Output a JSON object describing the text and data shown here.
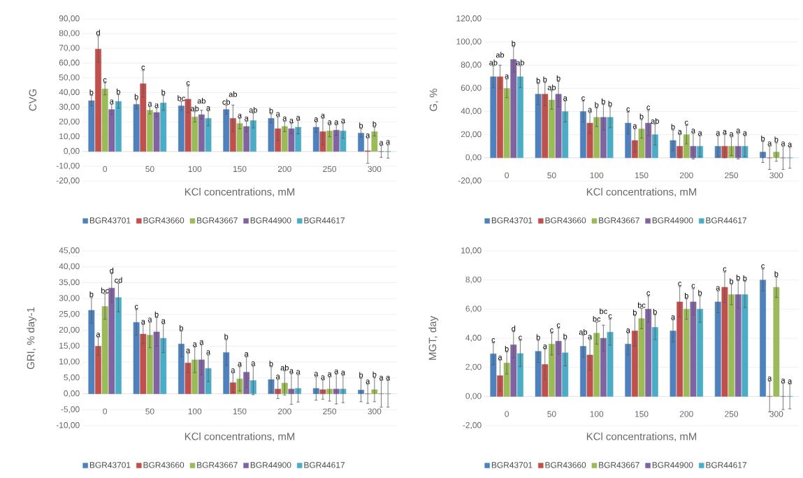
{
  "chart_data": [
    {
      "type": "bar",
      "xlabel": "KCl concentrations, mM",
      "ylabel": "CVG",
      "grid": "y",
      "legend": "bottom",
      "categories": [
        "0",
        "50",
        "100",
        "150",
        "200",
        "250",
        "300"
      ],
      "ylim": [
        -20,
        90
      ],
      "yticks": [
        {
          "value": -20,
          "label": "-20,00"
        },
        {
          "value": -10,
          "label": "-10,00"
        },
        {
          "value": 0,
          "label": "0,00"
        },
        {
          "value": 10,
          "label": "10,00"
        },
        {
          "value": 20,
          "label": "20,00"
        },
        {
          "value": 30,
          "label": "30,00"
        },
        {
          "value": 40,
          "label": "40,00"
        },
        {
          "value": 50,
          "label": "50,00"
        },
        {
          "value": 60,
          "label": "60,00"
        },
        {
          "value": 70,
          "label": "70,00"
        },
        {
          "value": 80,
          "label": "80,00"
        },
        {
          "value": 90,
          "label": "90,00"
        }
      ],
      "series": [
        {
          "name": "BGR43701",
          "color": "#4f81bd",
          "values": [
            34.5,
            32,
            31,
            28.5,
            22.5,
            16.5,
            12.5
          ],
          "errors": [
            3.5,
            3,
            3,
            3,
            3,
            3.5,
            3
          ],
          "value_labels": [
            "b",
            "b",
            "bc",
            "cb",
            "b",
            "a",
            "b"
          ]
        },
        {
          "name": "BGR43660",
          "color": "#c0504d",
          "values": [
            69.5,
            46,
            35.5,
            22.5,
            15.5,
            13.5,
            0.5
          ],
          "errors": [
            9,
            9,
            9,
            9,
            8,
            9,
            8.5
          ],
          "value_labels": [
            "d",
            "c",
            "c",
            "ab",
            "a",
            "a",
            "a"
          ]
        },
        {
          "name": "BGR43667",
          "color": "#9bbb59",
          "values": [
            42.5,
            28,
            23.5,
            19,
            17,
            14,
            13.5
          ],
          "errors": [
            4,
            2.5,
            3.5,
            3.5,
            3.5,
            4,
            3
          ],
          "value_labels": [
            "c",
            "a",
            "ab",
            "a",
            "a",
            "a",
            "b"
          ]
        },
        {
          "name": "BGR44900",
          "color": "#8064a2",
          "values": [
            28.5,
            26.5,
            25,
            17,
            15.5,
            14.5,
            0
          ],
          "errors": [
            3.5,
            3,
            3,
            3.5,
            3.5,
            3.5,
            4
          ],
          "value_labels": [
            "a",
            "a",
            "ab",
            "a",
            "a",
            "a",
            "a"
          ]
        },
        {
          "name": "BGR44617",
          "color": "#4bacc6",
          "values": [
            34,
            33,
            22.5,
            21,
            16.5,
            14,
            0
          ],
          "errors": [
            4.5,
            5,
            5,
            5,
            4.5,
            5,
            4.5
          ],
          "value_labels": [
            "b",
            "b",
            "a",
            "ab",
            "a",
            "a",
            "a"
          ]
        }
      ]
    },
    {
      "type": "bar",
      "xlabel": "KCl concentrations, mM",
      "ylabel": "G, %",
      "grid": "y",
      "legend": "bottom",
      "categories": [
        "0",
        "50",
        "100",
        "150",
        "200",
        "250",
        "300"
      ],
      "ylim": [
        -20,
        120
      ],
      "yticks": [
        {
          "value": -20,
          "label": "-20,00"
        },
        {
          "value": 0,
          "label": "0,00"
        },
        {
          "value": 20,
          "label": "20,00"
        },
        {
          "value": 40,
          "label": "40,00"
        },
        {
          "value": 60,
          "label": "60,00"
        },
        {
          "value": 80,
          "label": "80,00"
        },
        {
          "value": 100,
          "label": "100,00"
        },
        {
          "value": 120,
          "label": "120,00"
        }
      ],
      "series": [
        {
          "name": "BGR43701",
          "color": "#4f81bd",
          "values": [
            70,
            55,
            40,
            30,
            15,
            10,
            5
          ],
          "errors": [
            9.5,
            9,
            9,
            9.5,
            9,
            9,
            9
          ],
          "value_labels": [
            "ab",
            "b",
            "c",
            "c",
            "b",
            "a",
            "b"
          ]
        },
        {
          "name": "BGR43660",
          "color": "#c0504d",
          "values": [
            70,
            55,
            30,
            15,
            10,
            10,
            0
          ],
          "errors": [
            10,
            10,
            9,
            10,
            10,
            10,
            10
          ],
          "value_labels": [
            "ab",
            "b",
            "a",
            "a",
            "a",
            "a",
            "a"
          ]
        },
        {
          "name": "BGR43667",
          "color": "#9bbb59",
          "values": [
            60,
            50,
            35,
            25,
            20,
            10,
            5
          ],
          "errors": [
            8,
            8,
            8,
            8,
            8,
            8,
            8
          ],
          "value_labels": [
            "a",
            "ab",
            "b",
            "b",
            "c",
            "a",
            "b"
          ]
        },
        {
          "name": "BGR44900",
          "color": "#8064a2",
          "values": [
            85,
            55,
            35,
            30,
            10,
            10,
            0
          ],
          "errors": [
            11,
            11,
            11,
            11,
            11,
            11,
            10
          ],
          "value_labels": [
            "b",
            "b",
            "b",
            "c",
            "a",
            "a",
            "a"
          ]
        },
        {
          "name": "BGR44617",
          "color": "#4bacc6",
          "values": [
            70,
            40,
            35,
            20,
            10,
            10,
            0
          ],
          "errors": [
            9.5,
            9,
            9,
            9,
            9,
            9,
            9
          ],
          "value_labels": [
            "ab",
            "a",
            "b",
            "ab",
            "a",
            "a",
            "a"
          ]
        }
      ]
    },
    {
      "type": "bar",
      "xlabel": "KCl concentrations, mM",
      "ylabel": "GRI, % day-1",
      "grid": "y",
      "legend": "bottom",
      "categories": [
        "0",
        "50",
        "100",
        "150",
        "200",
        "250",
        "300"
      ],
      "ylim": [
        -10,
        45
      ],
      "yticks": [
        {
          "value": -10,
          "label": "-10,00"
        },
        {
          "value": -5,
          "label": "-5,00"
        },
        {
          "value": 0,
          "label": "0,00"
        },
        {
          "value": 5,
          "label": "5,00"
        },
        {
          "value": 10,
          "label": "10,00"
        },
        {
          "value": 15,
          "label": "15,00"
        },
        {
          "value": 20,
          "label": "20,00"
        },
        {
          "value": 25,
          "label": "25,00"
        },
        {
          "value": 30,
          "label": "30,00"
        },
        {
          "value": 35,
          "label": "35,00"
        },
        {
          "value": 40,
          "label": "40,00"
        },
        {
          "value": 45,
          "label": "45,00"
        }
      ],
      "series": [
        {
          "name": "BGR43701",
          "color": "#4f81bd",
          "values": [
            26.3,
            22.5,
            15.7,
            13,
            4.5,
            1.7,
            1.2
          ],
          "errors": [
            4,
            4,
            4,
            4,
            4,
            3.7,
            3.7
          ],
          "value_labels": [
            "b",
            "c",
            "b",
            "b",
            "b",
            "a",
            "b"
          ]
        },
        {
          "name": "BGR43660",
          "color": "#c0504d",
          "values": [
            15,
            18.8,
            9.7,
            3.5,
            1.5,
            1.3,
            0
          ],
          "errors": [
            2.8,
            3,
            3,
            3,
            3,
            3,
            3
          ],
          "value_labels": [
            "a",
            "a",
            "a",
            "a",
            "a",
            "a",
            "a"
          ]
        },
        {
          "name": "BGR43667",
          "color": "#9bbb59",
          "values": [
            27.5,
            18.5,
            10.7,
            4.7,
            3.4,
            1.5,
            1.3
          ],
          "errors": [
            4,
            4,
            4,
            3.8,
            3.8,
            3.8,
            3.8
          ],
          "value_labels": [
            "bc",
            "a",
            "a",
            "a",
            "ab",
            "a",
            "b"
          ]
        },
        {
          "name": "BGR44900",
          "color": "#8064a2",
          "values": [
            33.3,
            19.5,
            10.7,
            6.8,
            1.5,
            1.5,
            0
          ],
          "errors": [
            4.5,
            4.5,
            4.7,
            4.8,
            4.8,
            4.7,
            4.2
          ],
          "value_labels": [
            "d",
            "b",
            "a",
            "a",
            "a",
            "a",
            "a"
          ]
        },
        {
          "name": "BGR44617",
          "color": "#4bacc6",
          "values": [
            30.3,
            17.5,
            8,
            4.2,
            1.7,
            1.5,
            0
          ],
          "errors": [
            4.5,
            4.5,
            4.2,
            4.5,
            4.3,
            4.3,
            4.2
          ],
          "value_labels": [
            "cd",
            "a",
            "a",
            "a",
            "a",
            "a",
            "a"
          ]
        }
      ]
    },
    {
      "type": "bar",
      "xlabel": "KCl concentrations, mM",
      "ylabel": "MGT, day",
      "grid": "y",
      "legend": "bottom",
      "categories": [
        "0",
        "50",
        "100",
        "150",
        "200",
        "250",
        "300"
      ],
      "ylim": [
        -2,
        10
      ],
      "yticks": [
        {
          "value": -2,
          "label": "-2,00"
        },
        {
          "value": 0,
          "label": "0,00"
        },
        {
          "value": 2,
          "label": "2,00"
        },
        {
          "value": 4,
          "label": "4,00"
        },
        {
          "value": 6,
          "label": "6,00"
        },
        {
          "value": 8,
          "label": "8,00"
        },
        {
          "value": 10,
          "label": "10,00"
        }
      ],
      "series": [
        {
          "name": "BGR43701",
          "color": "#4f81bd",
          "values": [
            2.93,
            3.1,
            3.45,
            3.6,
            4.5,
            6.5,
            8.0
          ],
          "errors": [
            0.75,
            0.75,
            0.75,
            0.75,
            0.75,
            0.75,
            0.75
          ],
          "value_labels": [
            "c",
            "b",
            "ab",
            "a",
            "a",
            "a",
            "c"
          ]
        },
        {
          "name": "BGR43660",
          "color": "#c0504d",
          "values": [
            1.43,
            2.2,
            2.85,
            4.5,
            6.5,
            7.5,
            0
          ],
          "errors": [
            1.05,
            1.05,
            1.05,
            1.05,
            1.05,
            1.05,
            1.05
          ],
          "value_labels": [
            "a",
            "a",
            "a",
            "b",
            "c",
            "c",
            "a"
          ]
        },
        {
          "name": "BGR43667",
          "color": "#9bbb59",
          "values": [
            2.3,
            3.6,
            4.35,
            5.35,
            6.0,
            7.0,
            7.5
          ],
          "errors": [
            0.75,
            0.75,
            0.75,
            0.7,
            0.7,
            0.7,
            0.7
          ],
          "value_labels": [
            "b",
            "c",
            "bc",
            "bc",
            "b",
            "b",
            "b"
          ]
        },
        {
          "name": "BGR44900",
          "color": "#8064a2",
          "values": [
            3.55,
            3.8,
            4.0,
            6.0,
            6.5,
            7.0,
            0
          ],
          "errors": [
            0.9,
            0.9,
            0.9,
            0.9,
            0.9,
            0.95,
            0.9
          ],
          "value_labels": [
            "d",
            "c",
            "bc",
            "c",
            "c",
            "b",
            "a"
          ]
        },
        {
          "name": "BGR44617",
          "color": "#4bacc6",
          "values": [
            2.95,
            3.0,
            4.42,
            4.75,
            6.0,
            7.0,
            0
          ],
          "errors": [
            0.9,
            0.9,
            0.9,
            0.85,
            0.9,
            0.9,
            0.85
          ],
          "value_labels": [
            "c",
            "b",
            "c",
            "b",
            "b",
            "b",
            "a"
          ]
        }
      ]
    }
  ]
}
